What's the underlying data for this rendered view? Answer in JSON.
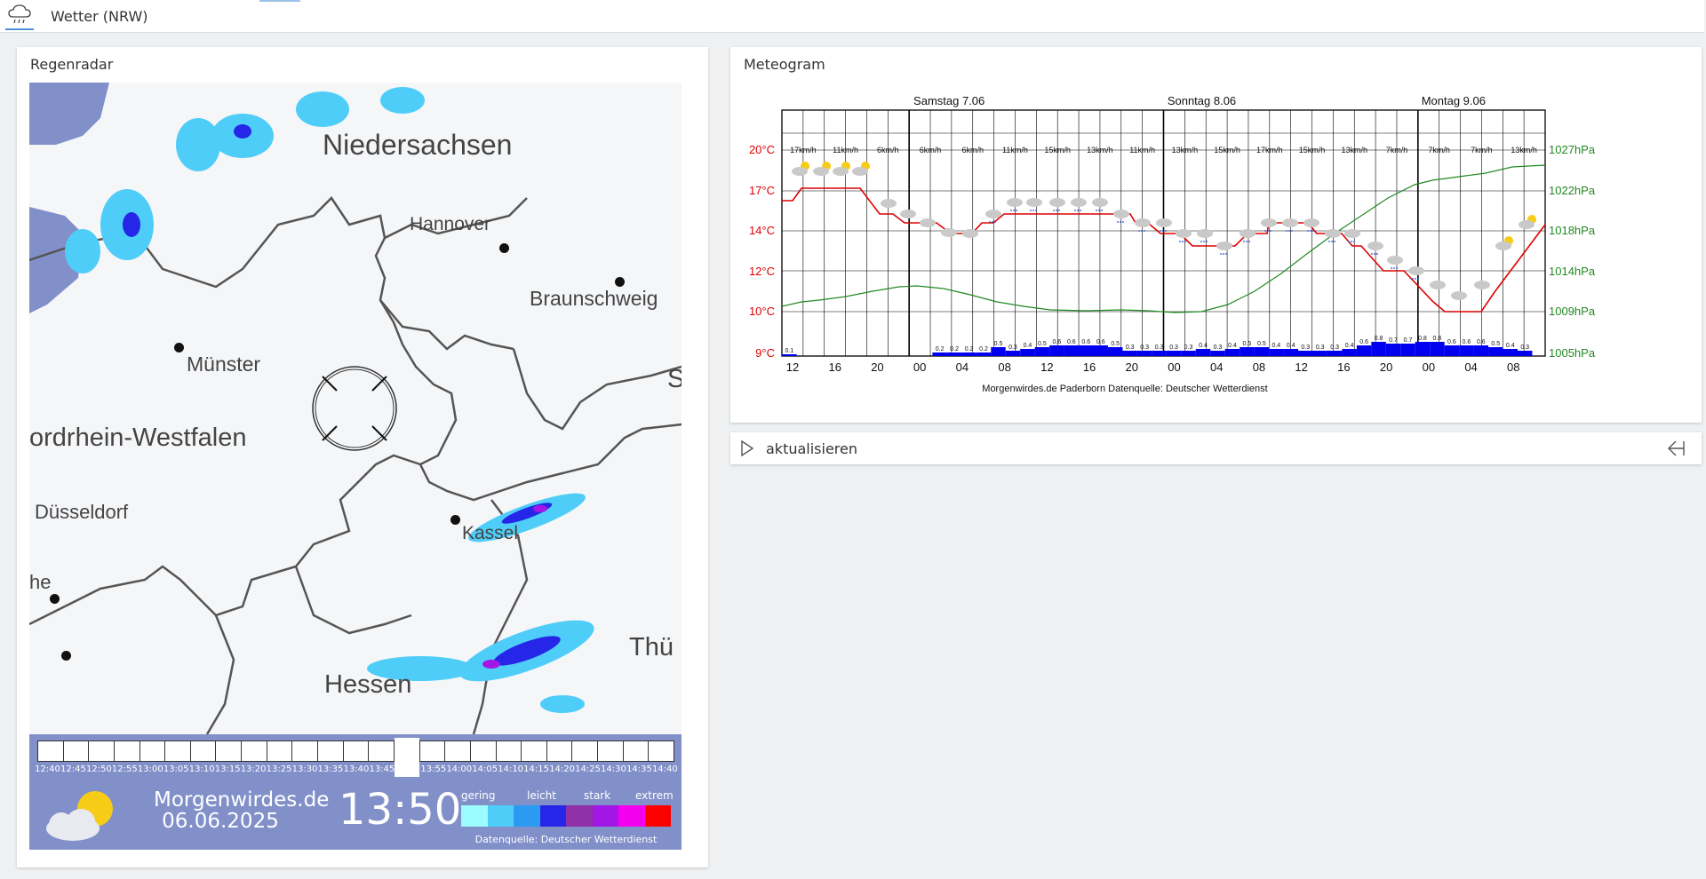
{
  "header": {
    "title": "Wetter (NRW)",
    "icon": "cloud-rain-icon"
  },
  "radar": {
    "title": "Regenradar",
    "map_labels": {
      "niedersachsen": "Niedersachsen",
      "hannover": "Hannover",
      "braunschweig": "Braunschweig",
      "muenster": "Münster",
      "nrw": "ordrhein-Westfalen",
      "duesseldorf": "Düsseldorf",
      "kassel": "Kassel",
      "hessen": "Hessen",
      "thueringen": "Thü",
      "edge1": "he",
      "edge2": "S"
    },
    "timeline": [
      "12:40",
      "12:45",
      "12:50",
      "12:55",
      "13:00",
      "13:05",
      "13:10",
      "13:15",
      "13:20",
      "13:25",
      "13:30",
      "13:35",
      "13:40",
      "13:45",
      "13:50",
      "13:55",
      "14:00",
      "14:05",
      "14:10",
      "14:15",
      "14:20",
      "14:25",
      "14:30",
      "14:35",
      "14:40"
    ],
    "current_frame": "13:50",
    "brand": "Morgenwirdes.de",
    "date": "06.06.2025",
    "time": "13:50",
    "legend_words": [
      "gering",
      "leicht",
      "stark",
      "extrem"
    ],
    "legend_colors": [
      "#9cfcff",
      "#4fcdf9",
      "#2a9af2",
      "#2626e8",
      "#8e30a8",
      "#a216e6",
      "#f400ee",
      "#fc0000"
    ],
    "source": "Datenquelle: Deutscher Wetterdienst"
  },
  "meteogram": {
    "title": "Meteogram",
    "days": [
      "Samstag 7.06",
      "Sonntag 8.06",
      "Montag 9.06"
    ],
    "temp_labels": [
      "20°C",
      "17°C",
      "14°C",
      "12°C",
      "10°C",
      "9°C"
    ],
    "pressure_labels": [
      "1027hPa",
      "1022hPa",
      "1018hPa",
      "1014hPa",
      "1009hPa",
      "1005hPa"
    ],
    "hour_labels": [
      "12",
      "16",
      "20",
      "00",
      "04",
      "08",
      "12",
      "16",
      "20",
      "00",
      "04",
      "08",
      "12",
      "16",
      "20",
      "00",
      "04",
      "08"
    ],
    "wind_labels": [
      "17km/h",
      "11km/h",
      "6km/h",
      "6km/h",
      "6km/h",
      "11km/h",
      "15km/h",
      "13km/h",
      "11km/h",
      "13km/h",
      "15km/h",
      "17km/h",
      "15km/h",
      "13km/h",
      "7km/h",
      "7km/h",
      "7km/h",
      "13km/h"
    ],
    "precip_values": [
      "0.1",
      "0.2",
      "0.2",
      "0.2",
      "0.2",
      "0.5",
      "0.3",
      "0.4",
      "0.5",
      "0.6",
      "0.6",
      "0.6",
      "0.6",
      "0.5",
      "0.3",
      "0.3",
      "0.3",
      "0.3",
      "0.3",
      "0.4",
      "0.3",
      "0.4",
      "0.5",
      "0.5",
      "0.4",
      "0.4",
      "0.3",
      "0.3",
      "0.3",
      "0.4",
      "0.6",
      "0.8",
      "0.7",
      "0.7",
      "0.8",
      "0.8",
      "0.6",
      "0.6",
      "0.6",
      "0.5",
      "0.4",
      "0.3"
    ],
    "footer": "Morgenwirdes.de    Paderborn    Datenquelle: Deutscher Wetterdienst",
    "colors": {
      "temp": "#dd0000",
      "pressure": "#228822",
      "precip": "#0000ee"
    }
  },
  "refresh": {
    "label": "aktualisieren",
    "icon": "play-icon",
    "back_icon": "back-arrow-icon"
  }
}
